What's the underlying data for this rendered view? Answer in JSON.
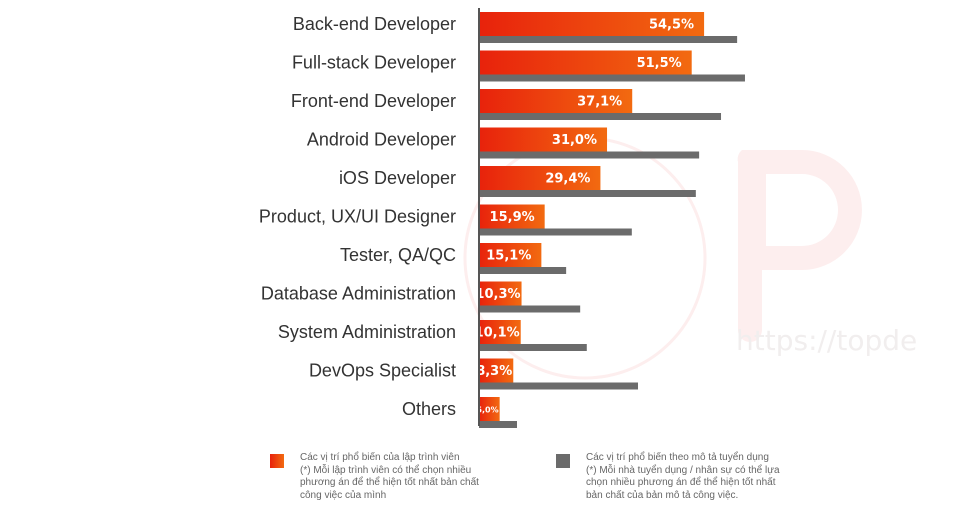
{
  "chart_data": {
    "type": "bar",
    "orientation": "horizontal",
    "title": "",
    "xlabel": "",
    "ylabel": "",
    "xlim": [
      0,
      65
    ],
    "grid": false,
    "categories": [
      "Back-end Developer",
      "Full-stack Developer",
      "Front-end Developer",
      "Android Developer",
      "iOS Developer",
      "Product, UX/UI Designer",
      "Tester, QA/QC",
      "Database Administration",
      "System Administration",
      "DevOps Specialist",
      "Others"
    ],
    "series": [
      {
        "name": "Các vị trí phổ biến của lập trình viên",
        "color": "#f26a10",
        "color_start": "#e8220c",
        "values": [
          54.5,
          51.5,
          37.1,
          31.0,
          29.4,
          15.9,
          15.1,
          10.3,
          10.1,
          8.3,
          5.0
        ],
        "labels": [
          "54,5%",
          "51,5%",
          "37,1%",
          "31,0%",
          "29,4%",
          "15,9%",
          "15,1%",
          "10,3%",
          "10,1%",
          "8,3%",
          "5,0%"
        ]
      },
      {
        "name": "Các vị trí phổ biến theo mô tả tuyển dụng",
        "color": "#6b6b6b",
        "values": [
          62.5,
          64.4,
          58.6,
          53.3,
          52.5,
          37.0,
          21.1,
          24.5,
          26.1,
          38.5,
          9.2
        ],
        "labels": []
      }
    ],
    "legend": {
      "placement": "bottom",
      "entries": [
        {
          "lines": [
            "Các vị trí phổ biến của lập trình viên",
            "(*) Mỗi lập trình viên có thể chọn nhiều",
            "phương án để thể hiện tốt nhất bản chất",
            "công việc của mình"
          ]
        },
        {
          "lines": [
            "Các vị trí phổ biến theo mô tả tuyển dụng",
            "(*) Mỗi nhà tuyển dụng / nhân sự có thể lựa",
            "chọn nhiều phương án để thể hiện tốt nhất",
            "bản chất của bản mô tả công việc."
          ]
        }
      ]
    }
  },
  "watermark": {
    "text": "https://topde",
    "letter": "P"
  },
  "colors": {
    "axis": "#555555",
    "label": "#333333",
    "legend_text": "#666666",
    "watermark": "#fbe3e3"
  }
}
